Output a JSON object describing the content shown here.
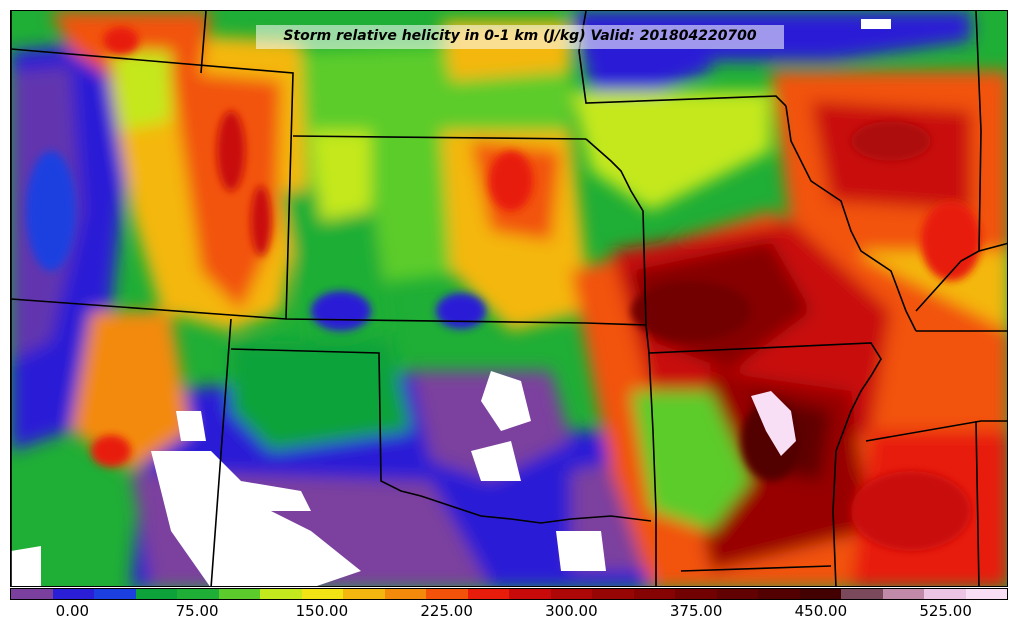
{
  "title": "Storm relative helicity in 0-1 km (J/kg) Valid: 201804220700",
  "colorbar": {
    "min": -37.5,
    "max": 562.5,
    "step": 25,
    "colors": [
      "#7b3f9e",
      "#2a1fd6",
      "#1c3fe0",
      "#0da33a",
      "#1fae36",
      "#5bcc2b",
      "#c4e81e",
      "#f2e414",
      "#f4b70f",
      "#f38a0c",
      "#f2520a",
      "#e81c0a",
      "#c90a0a",
      "#ad0707",
      "#980505",
      "#860303",
      "#720202",
      "#610101",
      "#520000",
      "#420000",
      "#7a4a5c",
      "#c08aa8",
      "#ecc5e5",
      "#f8dff5"
    ],
    "tick_labels": [
      "0.00",
      "75.00",
      "150.00",
      "225.00",
      "300.00",
      "375.00",
      "450.00",
      "525.00"
    ],
    "tick_values": [
      0,
      75,
      150,
      225,
      300,
      375,
      450,
      525
    ]
  }
}
